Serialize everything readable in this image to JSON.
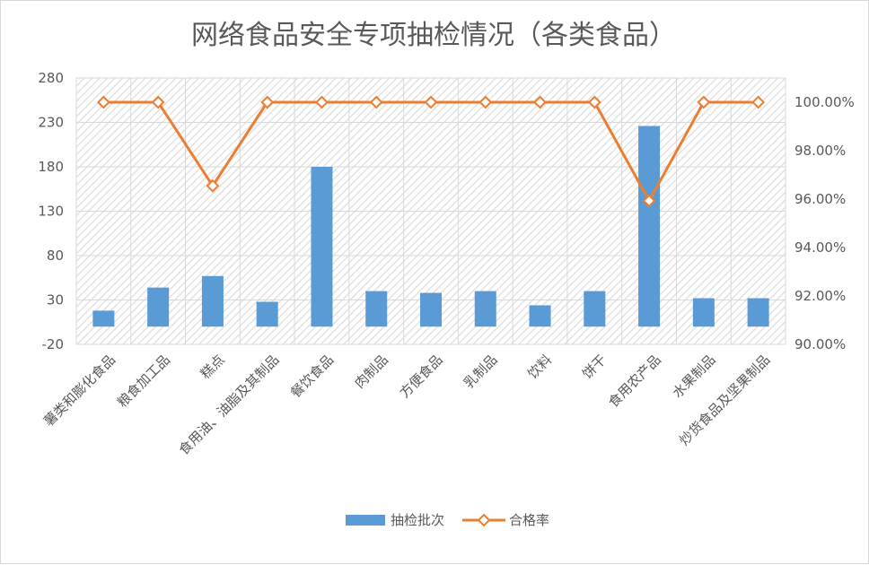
{
  "chart_data": {
    "type": "bar+line",
    "title": "网络食品安全专项抽检情况（各类食品）",
    "categories": [
      "薯类和膨化食品",
      "粮食加工品",
      "糕点",
      "食用油、油脂及其制品",
      "餐饮食品",
      "肉制品",
      "方便食品",
      "乳制品",
      "饮料",
      "饼干",
      "食用农产品",
      "水果制品",
      "炒货食品及坚果制品"
    ],
    "series": [
      {
        "name": "抽检批次",
        "type": "bar",
        "axis": "left",
        "color": "#5b9bd5",
        "values": [
          18,
          44,
          57,
          28,
          180,
          40,
          38,
          40,
          24,
          40,
          226,
          32,
          32
        ]
      },
      {
        "name": "合格率",
        "type": "line",
        "axis": "right",
        "color": "#ed7d31",
        "values": [
          100.0,
          100.0,
          96.55,
          100.0,
          100.0,
          100.0,
          100.0,
          100.0,
          100.0,
          100.0,
          95.93,
          100.0,
          100.0
        ]
      }
    ],
    "y_left": {
      "min": -20,
      "max": 280,
      "ticks": [
        "-20",
        "30",
        "80",
        "130",
        "180",
        "230",
        "280"
      ]
    },
    "y_right": {
      "min": 90,
      "max": 101,
      "ticks": [
        "90.00%",
        "92.00%",
        "94.00%",
        "96.00%",
        "98.00%",
        "100.00%"
      ]
    },
    "grid": true,
    "legend_position": "bottom"
  }
}
